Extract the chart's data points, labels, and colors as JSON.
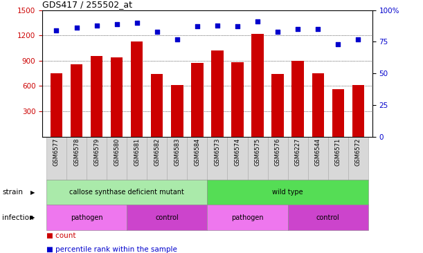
{
  "title": "GDS417 / 255502_at",
  "samples": [
    "GSM6577",
    "GSM6578",
    "GSM6579",
    "GSM6580",
    "GSM6581",
    "GSM6582",
    "GSM6583",
    "GSM6584",
    "GSM6573",
    "GSM6574",
    "GSM6575",
    "GSM6576",
    "GSM6227",
    "GSM6544",
    "GSM6571",
    "GSM6572"
  ],
  "bar_values": [
    750,
    855,
    960,
    940,
    1130,
    740,
    610,
    870,
    1020,
    880,
    1215,
    745,
    900,
    750,
    560,
    615
  ],
  "dot_values": [
    84,
    86,
    88,
    89,
    90,
    83,
    77,
    87,
    88,
    87,
    91,
    83,
    85,
    85,
    73,
    77
  ],
  "bar_color": "#cc0000",
  "dot_color": "#0000cc",
  "ylim_left": [
    0,
    1500
  ],
  "ylim_right": [
    0,
    100
  ],
  "yticks_left": [
    300,
    600,
    900,
    1200,
    1500
  ],
  "yticks_right": [
    0,
    25,
    50,
    75,
    100
  ],
  "grid_lines": [
    300,
    600,
    900,
    1200
  ],
  "strain_groups": [
    {
      "label": "callose synthase deficient mutant",
      "start": 0,
      "end": 8,
      "color": "#aaeaaa"
    },
    {
      "label": "wild type",
      "start": 8,
      "end": 16,
      "color": "#55dd55"
    }
  ],
  "infection_groups": [
    {
      "label": "pathogen",
      "start": 0,
      "end": 4,
      "color": "#ee77ee"
    },
    {
      "label": "control",
      "start": 4,
      "end": 8,
      "color": "#cc44cc"
    },
    {
      "label": "pathogen",
      "start": 8,
      "end": 12,
      "color": "#ee77ee"
    },
    {
      "label": "control",
      "start": 12,
      "end": 16,
      "color": "#cc44cc"
    }
  ],
  "legend_items": [
    {
      "label": "count",
      "color": "#cc0000"
    },
    {
      "label": "percentile rank within the sample",
      "color": "#0000cc"
    }
  ],
  "strain_label": "strain",
  "infection_label": "infection",
  "xticklabel_bg": "#d8d8d8"
}
